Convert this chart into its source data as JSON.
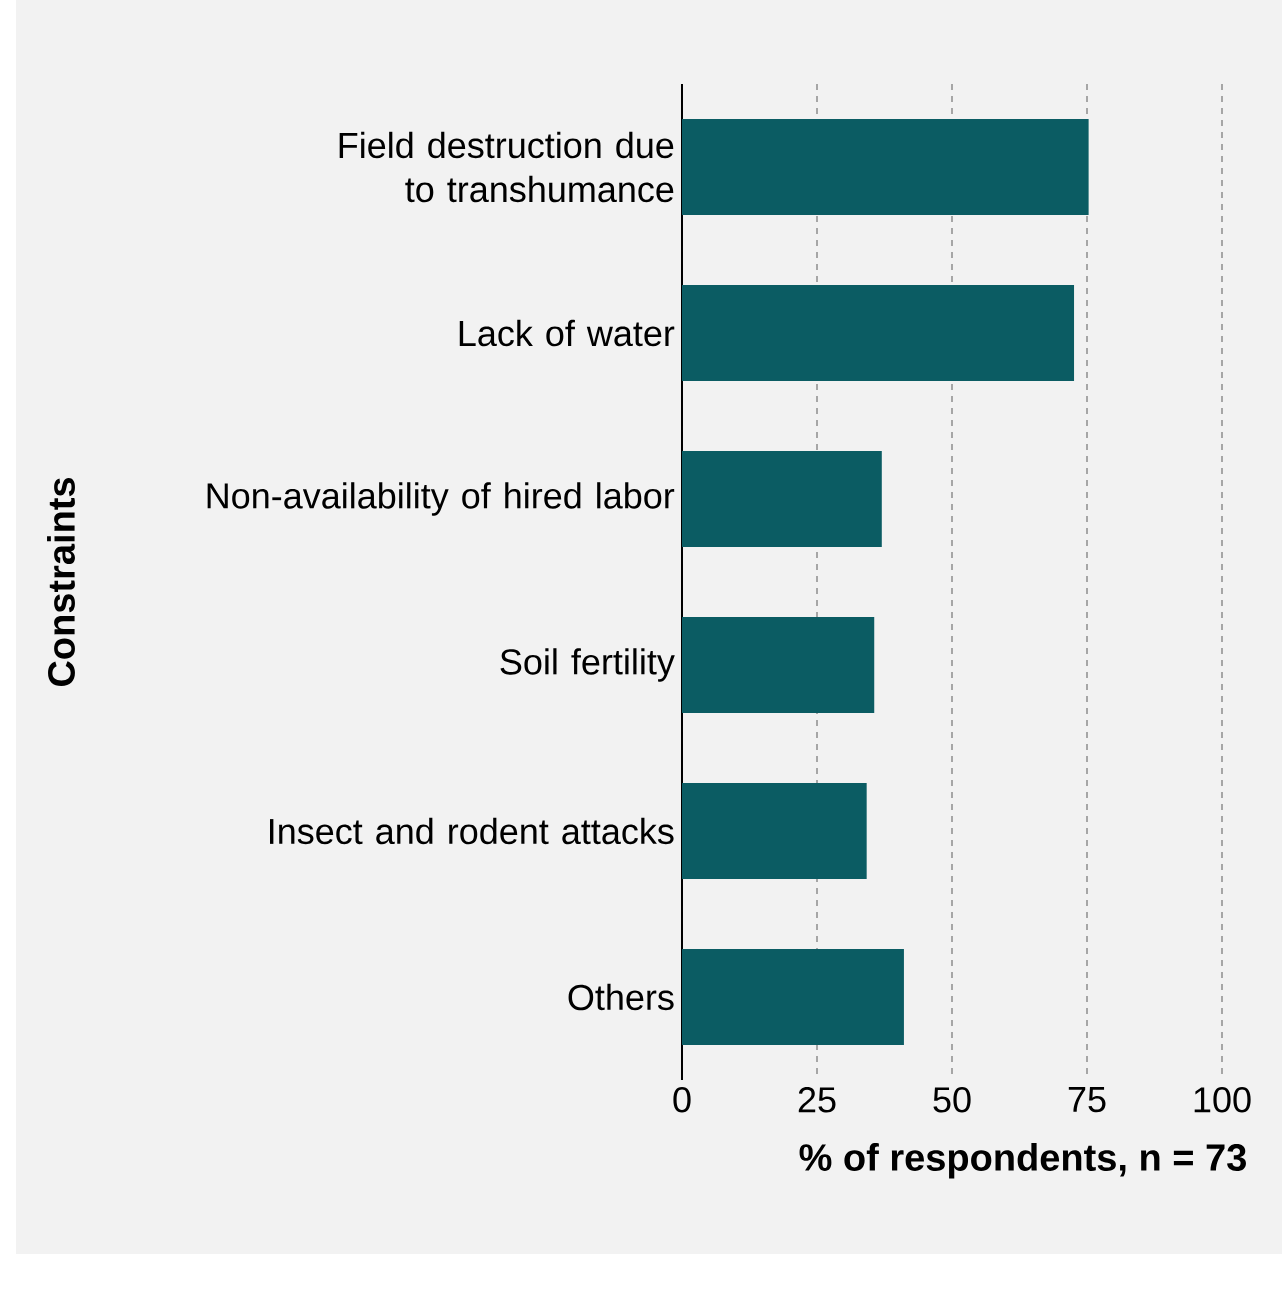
{
  "chart_data": {
    "type": "bar",
    "orientation": "horizontal",
    "xlabel": "% of respondents, n = 73",
    "ylabel": "Constraints",
    "categories": [
      "Field destruction due to transhumance",
      "Lack of water",
      "Non-availability of hired labor",
      "Soil fertility",
      "Insect and rodent attacks",
      "Others"
    ],
    "values": [
      75.3,
      72.6,
      37.0,
      35.6,
      34.2,
      41.1
    ],
    "color": "#0b5c63",
    "xlim": [
      0,
      100
    ],
    "xticks": [
      0,
      25,
      50,
      75,
      100
    ],
    "grid": "x"
  }
}
